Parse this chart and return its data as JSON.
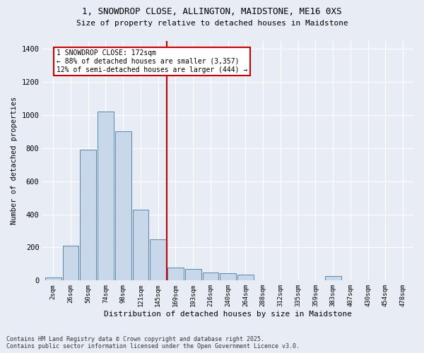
{
  "title_line1": "1, SNOWDROP CLOSE, ALLINGTON, MAIDSTONE, ME16 0XS",
  "title_line2": "Size of property relative to detached houses in Maidstone",
  "xlabel": "Distribution of detached houses by size in Maidstone",
  "ylabel": "Number of detached properties",
  "categories": [
    "2sqm",
    "26sqm",
    "50sqm",
    "74sqm",
    "98sqm",
    "121sqm",
    "145sqm",
    "169sqm",
    "193sqm",
    "216sqm",
    "240sqm",
    "264sqm",
    "288sqm",
    "312sqm",
    "335sqm",
    "359sqm",
    "383sqm",
    "407sqm",
    "430sqm",
    "454sqm",
    "478sqm"
  ],
  "values": [
    20,
    210,
    790,
    1020,
    900,
    430,
    250,
    80,
    70,
    50,
    45,
    35,
    0,
    0,
    0,
    0,
    25,
    0,
    0,
    0,
    0
  ],
  "bar_color": "#c8d8ea",
  "bar_edge_color": "#5588aa",
  "vline_pos": 6.5,
  "vline_color": "#cc0000",
  "annotation_text": "1 SNOWDROP CLOSE: 172sqm\n← 88% of detached houses are smaller (3,357)\n12% of semi-detached houses are larger (444) →",
  "ylim": [
    0,
    1450
  ],
  "yticks": [
    0,
    200,
    400,
    600,
    800,
    1000,
    1200,
    1400
  ],
  "bg_color": "#e8edf5",
  "grid_color": "#ffffff",
  "footnote": "Contains HM Land Registry data © Crown copyright and database right 2025.\nContains public sector information licensed under the Open Government Licence v3.0."
}
